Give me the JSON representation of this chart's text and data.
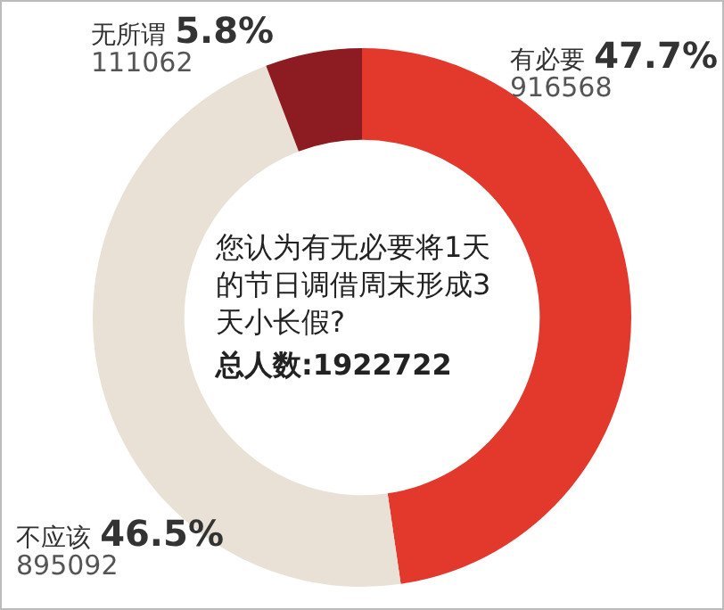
{
  "chart_data": {
    "type": "donut",
    "title": "您认为有无必要将1天的节日调借周末形成3天小长假?",
    "annotations": [
      "总人数:1922722",
      {
        "text": "916568",
        "x": "有必要"
      },
      {
        "text": "895092",
        "x": "不应该"
      },
      {
        "text": "111062",
        "x": "无所谓"
      }
    ],
    "categories": [
      "有必要",
      "不应该",
      "无所谓"
    ],
    "values": [
      47.7,
      46.5,
      5.8
    ],
    "value_labels": [
      "47.7%",
      "46.5%",
      "5.8%"
    ],
    "colors": [
      "#e2392c",
      "#e9e1d6",
      "#8c1b22"
    ],
    "legend": false
  }
}
